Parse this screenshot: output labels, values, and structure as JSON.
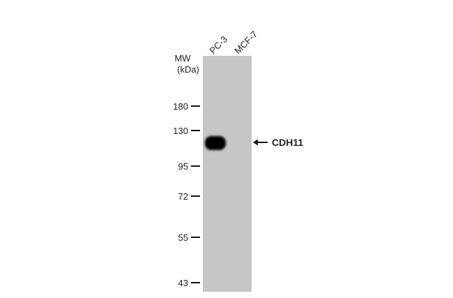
{
  "mw_label": "MW",
  "mw_unit": "(kDa)",
  "lanes": [
    "PC-3",
    "MCF-7"
  ],
  "markers": [
    180,
    130,
    95,
    72,
    55,
    43
  ],
  "band_label": "CDH11"
}
